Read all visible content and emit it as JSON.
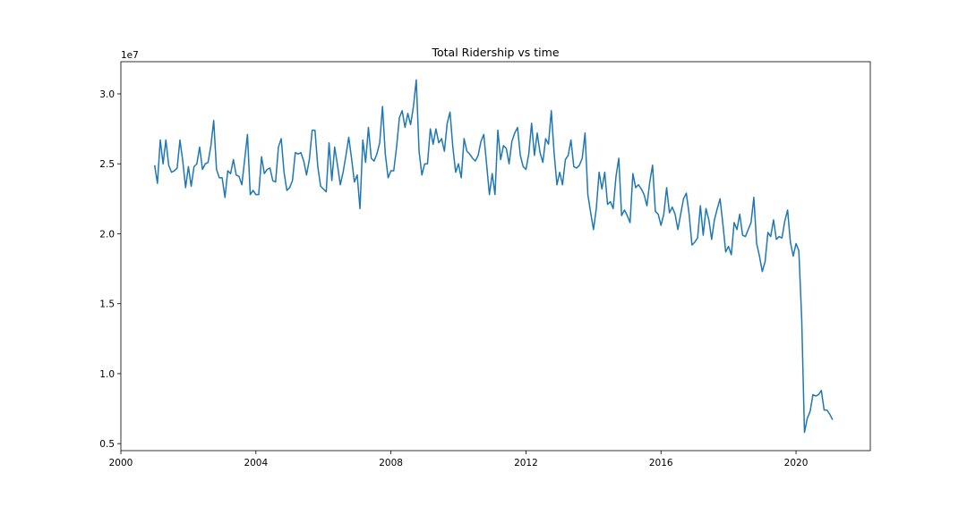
{
  "chart_data": {
    "type": "line",
    "title": "Total Ridership vs time",
    "xlabel": "",
    "ylabel": "",
    "y_offset_label": "1e7",
    "xlim": [
      2000,
      2022.2
    ],
    "ylim": [
      4500000,
      32300000
    ],
    "x_ticks": [
      2000,
      2004,
      2008,
      2012,
      2016,
      2020
    ],
    "x_tick_labels": [
      "2000",
      "2004",
      "2008",
      "2012",
      "2016",
      "2020"
    ],
    "y_ticks": [
      5000000,
      10000000,
      15000000,
      20000000,
      25000000,
      30000000
    ],
    "y_tick_labels": [
      "0.5",
      "1.0",
      "1.5",
      "2.0",
      "2.5",
      "3.0"
    ],
    "grid": false,
    "series": [
      {
        "color": "#1f77b4",
        "x": [
          2001.0,
          2001.083,
          2001.167,
          2001.25,
          2001.333,
          2001.417,
          2001.5,
          2001.583,
          2001.667,
          2001.75,
          2001.833,
          2001.917,
          2002.0,
          2002.083,
          2002.167,
          2002.25,
          2002.333,
          2002.417,
          2002.5,
          2002.583,
          2002.667,
          2002.75,
          2002.833,
          2002.917,
          2003.0,
          2003.083,
          2003.167,
          2003.25,
          2003.333,
          2003.417,
          2003.5,
          2003.583,
          2003.667,
          2003.75,
          2003.833,
          2003.917,
          2004.0,
          2004.083,
          2004.167,
          2004.25,
          2004.333,
          2004.417,
          2004.5,
          2004.583,
          2004.667,
          2004.75,
          2004.833,
          2004.917,
          2005.0,
          2005.083,
          2005.167,
          2005.25,
          2005.333,
          2005.417,
          2005.5,
          2005.583,
          2005.667,
          2005.75,
          2005.833,
          2005.917,
          2006.0,
          2006.083,
          2006.167,
          2006.25,
          2006.333,
          2006.417,
          2006.5,
          2006.583,
          2006.667,
          2006.75,
          2006.833,
          2006.917,
          2007.0,
          2007.083,
          2007.167,
          2007.25,
          2007.333,
          2007.417,
          2007.5,
          2007.583,
          2007.667,
          2007.75,
          2007.833,
          2007.917,
          2008.0,
          2008.083,
          2008.167,
          2008.25,
          2008.333,
          2008.417,
          2008.5,
          2008.583,
          2008.667,
          2008.75,
          2008.833,
          2008.917,
          2009.0,
          2009.083,
          2009.167,
          2009.25,
          2009.333,
          2009.417,
          2009.5,
          2009.583,
          2009.667,
          2009.75,
          2009.833,
          2009.917,
          2010.0,
          2010.083,
          2010.167,
          2010.25,
          2010.333,
          2010.417,
          2010.5,
          2010.583,
          2010.667,
          2010.75,
          2010.833,
          2010.917,
          2011.0,
          2011.083,
          2011.167,
          2011.25,
          2011.333,
          2011.417,
          2011.5,
          2011.583,
          2011.667,
          2011.75,
          2011.833,
          2011.917,
          2012.0,
          2012.083,
          2012.167,
          2012.25,
          2012.333,
          2012.417,
          2012.5,
          2012.583,
          2012.667,
          2012.75,
          2012.833,
          2012.917,
          2013.0,
          2013.083,
          2013.167,
          2013.25,
          2013.333,
          2013.417,
          2013.5,
          2013.583,
          2013.667,
          2013.75,
          2013.833,
          2013.917,
          2014.0,
          2014.083,
          2014.167,
          2014.25,
          2014.333,
          2014.417,
          2014.5,
          2014.583,
          2014.667,
          2014.75,
          2014.833,
          2014.917,
          2015.0,
          2015.083,
          2015.167,
          2015.25,
          2015.333,
          2015.417,
          2015.5,
          2015.583,
          2015.667,
          2015.75,
          2015.833,
          2015.917,
          2016.0,
          2016.083,
          2016.167,
          2016.25,
          2016.333,
          2016.417,
          2016.5,
          2016.583,
          2016.667,
          2016.75,
          2016.833,
          2016.917,
          2017.0,
          2017.083,
          2017.167,
          2017.25,
          2017.333,
          2017.417,
          2017.5,
          2017.583,
          2017.667,
          2017.75,
          2017.833,
          2017.917,
          2018.0,
          2018.083,
          2018.167,
          2018.25,
          2018.333,
          2018.417,
          2018.5,
          2018.583,
          2018.667,
          2018.75,
          2018.833,
          2018.917,
          2019.0,
          2019.083,
          2019.167,
          2019.25,
          2019.333,
          2019.417,
          2019.5,
          2019.583,
          2019.667,
          2019.75,
          2019.833,
          2019.917,
          2020.0,
          2020.083,
          2020.167,
          2020.25,
          2020.333,
          2020.417,
          2020.5,
          2020.583,
          2020.667,
          2020.75,
          2020.833,
          2020.917,
          2021.0,
          2021.083
        ],
        "y": [
          24900000,
          23600000,
          26700000,
          25000000,
          26700000,
          24900000,
          24400000,
          24500000,
          24700000,
          26700000,
          25200000,
          23300000,
          24800000,
          23400000,
          24800000,
          25000000,
          26200000,
          24600000,
          25000000,
          25100000,
          26300000,
          28100000,
          24600000,
          24000000,
          24000000,
          22600000,
          24500000,
          24300000,
          25300000,
          24200000,
          24100000,
          23500000,
          25300000,
          27100000,
          22800000,
          23100000,
          22800000,
          22800000,
          25500000,
          24300000,
          24600000,
          24700000,
          23800000,
          23700000,
          26200000,
          26800000,
          24400000,
          23100000,
          23300000,
          23800000,
          25800000,
          25700000,
          25800000,
          25200000,
          24200000,
          25300000,
          27400000,
          27400000,
          24800000,
          23400000,
          23200000,
          23000000,
          26500000,
          23800000,
          26200000,
          24900000,
          23500000,
          24400000,
          25600000,
          26900000,
          25400000,
          23700000,
          24200000,
          21800000,
          26700000,
          25100000,
          27600000,
          25400000,
          25200000,
          25700000,
          26500000,
          29100000,
          25700000,
          24000000,
          24500000,
          24500000,
          26200000,
          28300000,
          28800000,
          27600000,
          28600000,
          27800000,
          29100000,
          31000000,
          25900000,
          24200000,
          25000000,
          25000000,
          27500000,
          26400000,
          27500000,
          26500000,
          26800000,
          25900000,
          27900000,
          28700000,
          26200000,
          24400000,
          25000000,
          24000000,
          26800000,
          25900000,
          25700000,
          25400000,
          25200000,
          25600000,
          26600000,
          27100000,
          25000000,
          22800000,
          24300000,
          22800000,
          27400000,
          25300000,
          26300000,
          26100000,
          25000000,
          26600000,
          27200000,
          27600000,
          25600000,
          24800000,
          24600000,
          25700000,
          27900000,
          25600000,
          27200000,
          25800000,
          25100000,
          26800000,
          26400000,
          28800000,
          25800000,
          23500000,
          24400000,
          23500000,
          25300000,
          25600000,
          26700000,
          24800000,
          24700000,
          24900000,
          25400000,
          27200000,
          22800000,
          21500000,
          20300000,
          21800000,
          24400000,
          23200000,
          24400000,
          22100000,
          22300000,
          21800000,
          24100000,
          25400000,
          21300000,
          21700000,
          21300000,
          20800000,
          24300000,
          23300000,
          23500000,
          23200000,
          22800000,
          22000000,
          23700000,
          24900000,
          21600000,
          21400000,
          20600000,
          21400000,
          23300000,
          21500000,
          21900000,
          21400000,
          20300000,
          21400000,
          22500000,
          22900000,
          21400000,
          19200000,
          19400000,
          19700000,
          22000000,
          19900000,
          21800000,
          21000000,
          19600000,
          21000000,
          21800000,
          22500000,
          20700000,
          18700000,
          19100000,
          18500000,
          20800000,
          20300000,
          21400000,
          19900000,
          19800000,
          20300000,
          20800000,
          22600000,
          19300000,
          18400000,
          17300000,
          18000000,
          20100000,
          19800000,
          21000000,
          19600000,
          19800000,
          19700000,
          20900000,
          21700000,
          19400000,
          18400000,
          19300000,
          18800000,
          14000000,
          5800000,
          6800000,
          7300000,
          8500000,
          8400000,
          8500000,
          8800000,
          7400000,
          7400000,
          7100000,
          6700000
        ]
      }
    ]
  }
}
